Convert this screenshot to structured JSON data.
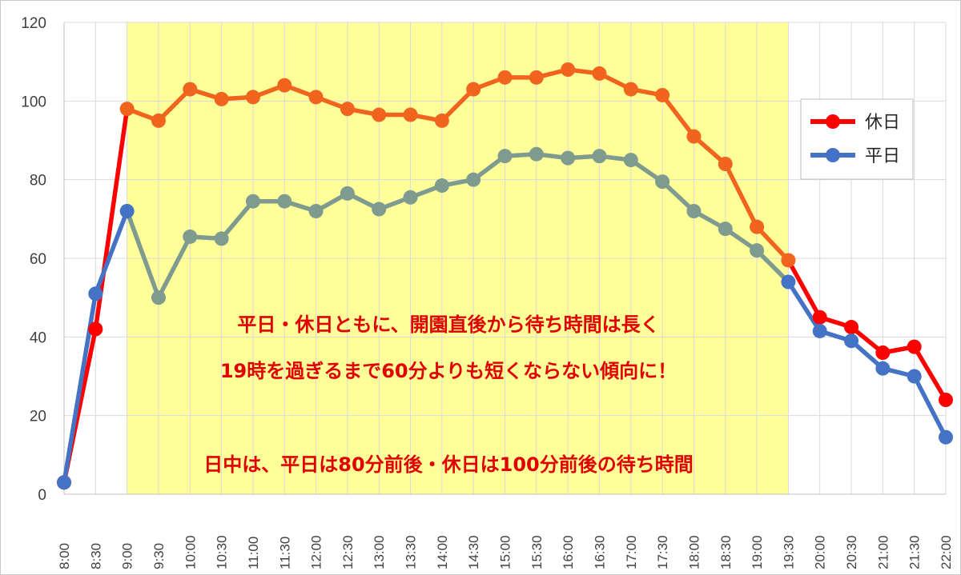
{
  "chart_data": {
    "type": "line",
    "categories": [
      "8:00",
      "8:30",
      "9:00",
      "9:30",
      "10:00",
      "10:30",
      "11:00",
      "11:30",
      "12:00",
      "12:30",
      "13:00",
      "13:30",
      "14:00",
      "14:30",
      "15:00",
      "15:30",
      "16:00",
      "16:30",
      "17:00",
      "17:30",
      "18:00",
      "18:30",
      "19:00",
      "19:30",
      "20:00",
      "20:30",
      "21:00",
      "21:30",
      "22:00"
    ],
    "series": [
      {
        "name": "休日",
        "color": "#ff0000",
        "values": [
          3,
          42,
          98,
          95,
          103,
          100.5,
          101,
          104,
          101,
          98,
          96.5,
          96.5,
          95,
          103,
          106,
          106,
          108,
          107,
          103,
          101.5,
          91,
          84,
          68,
          59.5,
          45,
          42.5,
          36,
          37.5,
          24
        ]
      },
      {
        "name": "平日",
        "color": "#4472c4",
        "values": [
          3,
          51,
          72,
          50,
          65.5,
          65,
          74.5,
          74.5,
          72,
          76.5,
          72.5,
          75.5,
          78.5,
          80,
          86,
          86.5,
          85.5,
          86,
          85,
          79.5,
          72,
          67.5,
          62,
          54,
          41.5,
          39,
          32,
          30,
          14.5
        ]
      }
    ],
    "overlap_color": "#7f9a8e",
    "highlight": {
      "from": "9:00",
      "to": "19:30",
      "color": "#ffff99"
    },
    "ylim": [
      0,
      120
    ],
    "yticks": [
      "0",
      "20",
      "40",
      "60",
      "80",
      "100",
      "120"
    ],
    "grid": true,
    "legend": "right",
    "xlabel": "",
    "ylabel": "",
    "title": "",
    "annotations": [
      "平日・休日ともに、開園直後から待ち時間は長く",
      "19時を過ぎるまで60分よりも短くならない傾向に！",
      "日中は、平日は80分前後・休日は100分前後の待ち時間"
    ]
  }
}
